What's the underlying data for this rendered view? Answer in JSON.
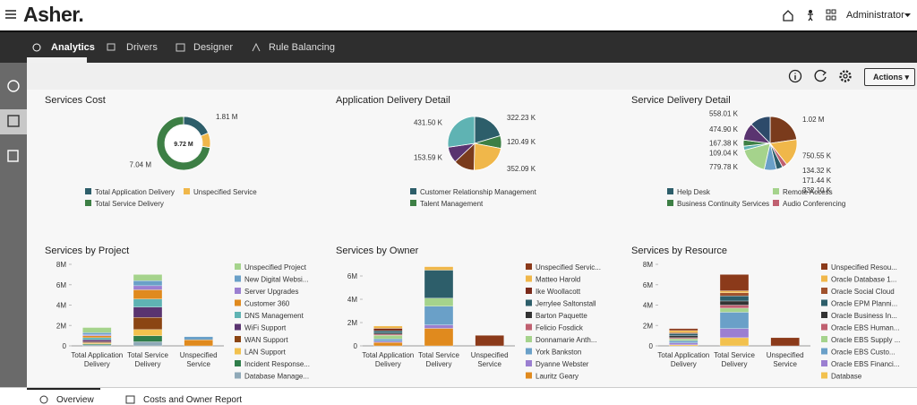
{
  "header": {
    "logo": "Asher.",
    "user": "Administrator"
  },
  "nav": {
    "tabs": [
      "Analytics",
      "Drivers",
      "Designer",
      "Rule Balancing"
    ]
  },
  "toolbar": {
    "actions": "Actions"
  },
  "panels": [
    {
      "title": "Services Cost",
      "chart": {
        "type": "donut",
        "center_label": "9.72 M",
        "slices": [
          {
            "name": "Total Application Delivery",
            "color": "#2d5e6a",
            "value": 1.81,
            "value_label": "1.81 M"
          },
          {
            "name": "Unspecified Service",
            "color": "#f0b74a",
            "value": 0.87
          },
          {
            "name": "Total Service Delivery",
            "color": "#3d7f45",
            "value": 7.04,
            "value_label": "7.04 M"
          }
        ]
      }
    },
    {
      "title": "Application Delivery Detail",
      "chart": {
        "type": "pie",
        "slices": [
          {
            "color": "#2d5e6a",
            "value": 322.23,
            "value_label": "322.23 K"
          },
          {
            "color": "#3d7f45",
            "value": 120.49,
            "value_label": "120.49 K"
          },
          {
            "color": "#f0b74a",
            "value": 352.09,
            "value_label": "352.09 K"
          },
          {
            "color": "#7a3b1c",
            "value": 200
          },
          {
            "color": "#5a3470",
            "value": 153.59,
            "value_label": "153.59 K"
          },
          {
            "color": "#5fb3b3",
            "value": 431.5,
            "value_label": "431.50 K"
          }
        ],
        "legend": [
          {
            "name": "Customer Relationship Management",
            "color": "#2d5e6a"
          },
          {
            "name": "Talent Management",
            "color": "#3d7f45"
          }
        ]
      }
    },
    {
      "title": "Service Delivery Detail",
      "chart": {
        "type": "pie",
        "slices": [
          {
            "color": "#7a3b1c",
            "value": 1020,
            "value_label": "1.02 M"
          },
          {
            "color": "#f0b74a",
            "value": 750.55,
            "value_label": "750.55 K"
          },
          {
            "color": "#c06070",
            "value": 134.32,
            "value_label": "134.32 K"
          },
          {
            "color": "#2d5e6a",
            "value": 171.44,
            "value_label": "171.44 K"
          },
          {
            "color": "#6aa0c8",
            "value": 332.1,
            "value_label": "332.10 K"
          },
          {
            "color": "#a5d38c",
            "value": 779.78,
            "value_label": "779.78 K"
          },
          {
            "color": "#5fb3b3",
            "value": 109.04,
            "value_label": "109.04 K"
          },
          {
            "color": "#3d7f45",
            "value": 167.38,
            "value_label": "167.38 K"
          },
          {
            "color": "#5a3470",
            "value": 474.9,
            "value_label": "474.90 K"
          },
          {
            "color": "#2d4a6a",
            "value": 558.01,
            "value_label": "558.01 K"
          }
        ],
        "legend": [
          {
            "name": "Help Desk",
            "color": "#2d5e6a"
          },
          {
            "name": "Remote Access",
            "color": "#a5d38c"
          },
          {
            "name": "Business Continuity Services",
            "color": "#3d7f45"
          },
          {
            "name": "Audio Conferencing",
            "color": "#c06070"
          }
        ]
      }
    },
    {
      "title": "Services by Project",
      "chart": {
        "type": "bar",
        "stacked": true,
        "categories": [
          "Total Application Delivery",
          "Total Service Delivery",
          "Unspecified Service"
        ],
        "ylim": [
          0,
          8
        ],
        "yticks": [
          0,
          {
            "value": 2,
            "label": "2M"
          },
          {
            "value": 4,
            "label": "4M"
          },
          {
            "value": 6,
            "label": "6M"
          },
          {
            "value": 8,
            "label": "8M"
          }
        ],
        "series": [
          {
            "name": "Unspecified Project",
            "color": "#a5d38c",
            "values": [
              0.5,
              0.6,
              0
            ]
          },
          {
            "name": "New Digital Websi...",
            "color": "#6aa0c8",
            "values": [
              0.2,
              0.5,
              0.3
            ]
          },
          {
            "name": "Server Upgrades",
            "color": "#9b7fd1",
            "values": [
              0.1,
              0.4,
              0
            ]
          },
          {
            "name": "Customer 360",
            "color": "#e08a1e",
            "values": [
              0.2,
              0.9,
              0.6
            ]
          },
          {
            "name": "DNS Management",
            "color": "#5fb3b3",
            "values": [
              0.2,
              0.8,
              0
            ]
          },
          {
            "name": "WiFi Support",
            "color": "#5a3470",
            "values": [
              0.2,
              1.0,
              0
            ]
          },
          {
            "name": "WAN Support",
            "color": "#8b4513",
            "values": [
              0.1,
              1.2,
              0
            ]
          },
          {
            "name": "LAN Support",
            "color": "#f2c14e",
            "values": [
              0.1,
              0.6,
              0
            ]
          },
          {
            "name": "Incident Response...",
            "color": "#2f7d4a",
            "values": [
              0.1,
              0.6,
              0
            ]
          },
          {
            "name": "Database Manage...",
            "color": "#8fa9b8",
            "values": [
              0.1,
              0.4,
              0
            ]
          }
        ]
      }
    },
    {
      "title": "Services by Owner",
      "chart": {
        "type": "bar",
        "stacked": true,
        "categories": [
          "Total Application Delivery",
          "Total Service Delivery",
          "Unspecified Service"
        ],
        "ylim": [
          0,
          7
        ],
        "yticks": [
          0,
          {
            "value": 2,
            "label": "2M"
          },
          {
            "value": 4,
            "label": "4M"
          },
          {
            "value": 6,
            "label": "6M"
          }
        ],
        "series": [
          {
            "name": "Unspecified Servic...",
            "color": "#8b3a1a",
            "values": [
              0,
              0,
              0.9
            ]
          },
          {
            "name": "Matteo Harold",
            "color": "#f0b74a",
            "values": [
              0.2,
              0.3,
              0
            ]
          },
          {
            "name": "Ike Woollacott",
            "color": "#7a2a1a",
            "values": [
              0.2,
              0,
              0
            ]
          },
          {
            "name": "Jerrylee Saltonstall",
            "color": "#2d5e6a",
            "values": [
              0.2,
              2.4,
              0
            ]
          },
          {
            "name": "Barton Paquette",
            "color": "#333333",
            "values": [
              0.1,
              0,
              0
            ]
          },
          {
            "name": "Felicio Fosdick",
            "color": "#c06070",
            "values": [
              0.1,
              0,
              0
            ]
          },
          {
            "name": "Donnamarie Anth...",
            "color": "#a5d38c",
            "values": [
              0.3,
              0.7,
              0
            ]
          },
          {
            "name": "York Bankston",
            "color": "#6aa0c8",
            "values": [
              0.2,
              1.6,
              0
            ]
          },
          {
            "name": "Dyanne Webster",
            "color": "#9b7fd1",
            "values": [
              0.1,
              0.3,
              0
            ]
          },
          {
            "name": "Lauritz Geary",
            "color": "#e08a1e",
            "values": [
              0.3,
              1.5,
              0
            ]
          }
        ]
      }
    },
    {
      "title": "Services by Resource",
      "chart": {
        "type": "bar",
        "stacked": true,
        "categories": [
          "Total Application Delivery",
          "Total Service Delivery",
          "Unspecified Service"
        ],
        "ylim": [
          0,
          8
        ],
        "yticks": [
          0,
          {
            "value": 2,
            "label": "2M"
          },
          {
            "value": 4,
            "label": "4M"
          },
          {
            "value": 6,
            "label": "6M"
          },
          {
            "value": 8,
            "label": "8M"
          }
        ],
        "series": [
          {
            "name": "Unspecified Resou...",
            "color": "#8b3a1a",
            "values": [
              0.2,
              1.6,
              0.8
            ]
          },
          {
            "name": "Oracle Database 1...",
            "color": "#f0b74a",
            "values": [
              0.2,
              0.2,
              0
            ]
          },
          {
            "name": "Oracle Social Cloud",
            "color": "#a0522d",
            "values": [
              0.1,
              0.3,
              0
            ]
          },
          {
            "name": "Oracle EPM Planni...",
            "color": "#2d5e6a",
            "values": [
              0.2,
              0.5,
              0
            ]
          },
          {
            "name": "Oracle Business In...",
            "color": "#333333",
            "values": [
              0.2,
              0.4,
              0
            ]
          },
          {
            "name": "Oracle EBS Human...",
            "color": "#c06070",
            "values": [
              0.1,
              0.3,
              0
            ]
          },
          {
            "name": "Oracle EBS Supply ...",
            "color": "#a5d38c",
            "values": [
              0.2,
              0.4,
              0
            ]
          },
          {
            "name": "Oracle EBS Custo...",
            "color": "#6aa0c8",
            "values": [
              0.2,
              1.6,
              0
            ]
          },
          {
            "name": "Oracle EBS Financi...",
            "color": "#9b7fd1",
            "values": [
              0.2,
              0.9,
              0
            ]
          },
          {
            "name": "Database",
            "color": "#f2c14e",
            "values": [
              0.1,
              0.8,
              0
            ]
          }
        ]
      }
    }
  ],
  "bottom_tabs": [
    "Overview",
    "Costs and Owner Report"
  ]
}
